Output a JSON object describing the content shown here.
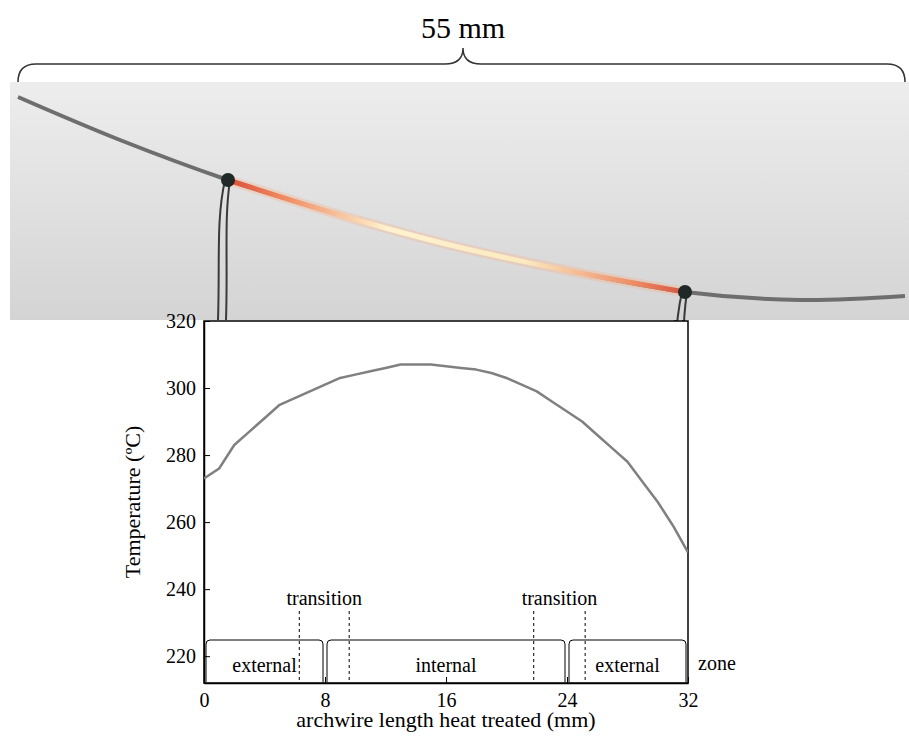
{
  "image": {
    "scale_label": "55 mm"
  },
  "chart_data": {
    "type": "line",
    "x_label": "archwire length heat treated (mm)",
    "y_label": "Temperature (ºC)",
    "x": [
      0,
      1,
      2,
      3,
      4,
      5,
      6,
      7,
      8,
      9,
      10,
      11,
      12,
      13,
      14,
      15,
      16,
      17,
      18,
      19,
      20,
      21,
      22,
      23,
      24,
      25,
      26,
      27,
      28,
      29,
      30,
      31,
      32
    ],
    "values": [
      273,
      276,
      283,
      287,
      291,
      295,
      297,
      299,
      301,
      303,
      304,
      305,
      306,
      307,
      307,
      307,
      306.5,
      306,
      305.5,
      304.5,
      303,
      301,
      299,
      296,
      293,
      290,
      286,
      282,
      278,
      272,
      266,
      259,
      251
    ],
    "color": "#808080",
    "xlim": [
      0,
      32
    ],
    "xticks": [
      0,
      8,
      16,
      24,
      32
    ],
    "ylim": [
      212,
      320
    ],
    "yticks": [
      220,
      240,
      260,
      280,
      300,
      320
    ],
    "grid": false,
    "zone_title": "zone",
    "zones": [
      {
        "label": "external",
        "from": 0,
        "to": 8
      },
      {
        "label": "internal",
        "from": 8,
        "to": 24
      },
      {
        "label": "external",
        "from": 24,
        "to": 32
      }
    ],
    "annotations": [
      {
        "text": "transition",
        "x": [
          6.3,
          9.6
        ]
      },
      {
        "text": "transition",
        "x": [
          21.8,
          25.2
        ]
      }
    ]
  }
}
